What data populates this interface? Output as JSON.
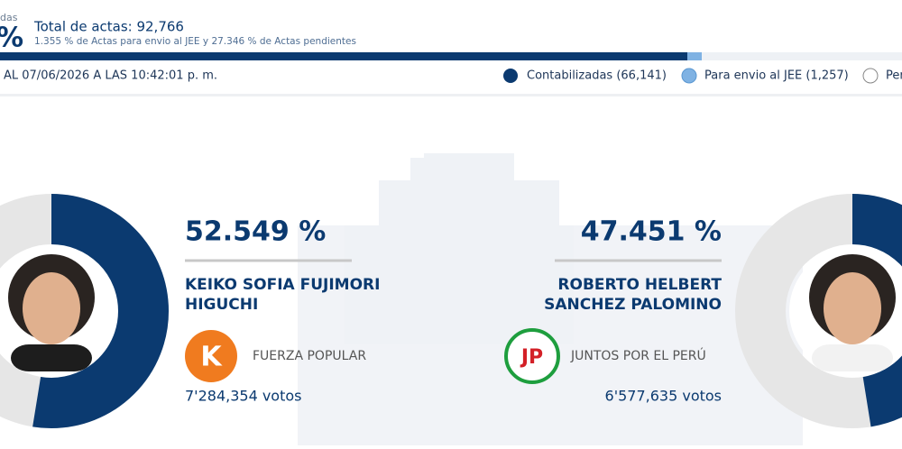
{
  "header": {
    "cut_label": "das",
    "cut_percent": "%",
    "total": "Total de actas: 92,766",
    "subtitle": "1.355 % de Actas para envio al JEE y 27.346 % de Actas pendientes"
  },
  "status": {
    "timestamp": "AL 07/06/2026 A LAS 10:42:01 p. m.",
    "legend": [
      "Contabilizadas (66,141)",
      "Para envio al JEE (1,257)",
      "Per"
    ]
  },
  "candidates": [
    {
      "percent": {
        "value": 52.549,
        "label": "52.549 %"
      },
      "name": [
        "KEIKO SOFIA FUJIMORI",
        "HIGUCHI"
      ],
      "party": "FUERZA POPULAR",
      "party_logo": "K",
      "votes": "7'284,354 votos"
    },
    {
      "percent": {
        "value": 47.451,
        "label": "47.451 %"
      },
      "name": [
        "ROBERTO HELBERT",
        "SANCHEZ PALOMINO"
      ],
      "party": "JUNTOS POR EL PERÚ",
      "party_logo": "JP",
      "votes": "6'577,635 votos"
    }
  ]
}
